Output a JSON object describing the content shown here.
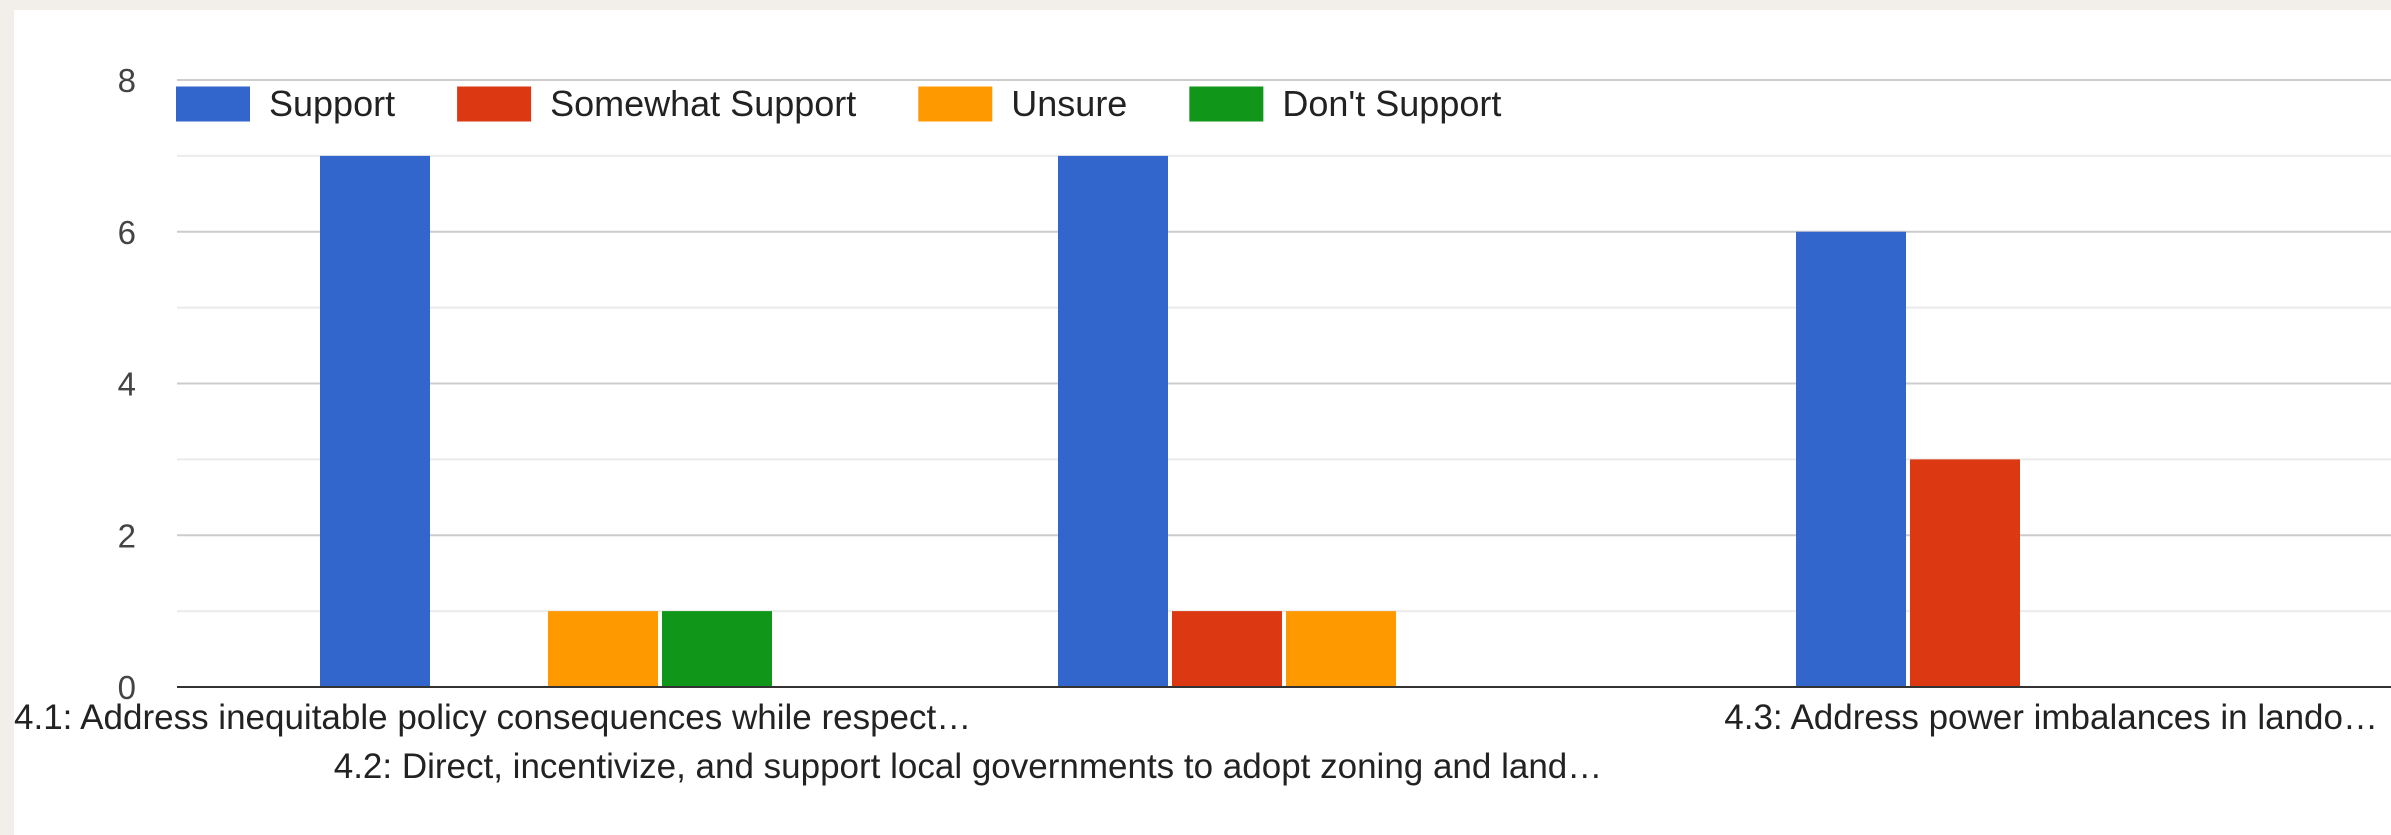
{
  "chart_data": {
    "type": "bar",
    "categories": [
      "4.1: Address inequitable policy consequences while respect…",
      "4.2: Direct, incentivize, and support local governments to adopt zoning and land…",
      "4.3: Address power imbalances in lando…"
    ],
    "series": [
      {
        "name": "Support",
        "color": "#3366cc",
        "values": [
          7,
          7,
          6
        ]
      },
      {
        "name": "Somewhat Support",
        "color": "#dc3912",
        "values": [
          0,
          1,
          3
        ]
      },
      {
        "name": "Unsure",
        "color": "#ff9900",
        "values": [
          1,
          1,
          0
        ]
      },
      {
        "name": "Don't Support",
        "color": "#109618",
        "values": [
          1,
          0,
          0
        ]
      }
    ],
    "ylim": [
      0,
      8
    ],
    "yticks": [
      0,
      2,
      4,
      6,
      8
    ],
    "minor_gridlines": true,
    "legend_position": "top",
    "xlabel": "",
    "ylabel": "",
    "title": ""
  }
}
